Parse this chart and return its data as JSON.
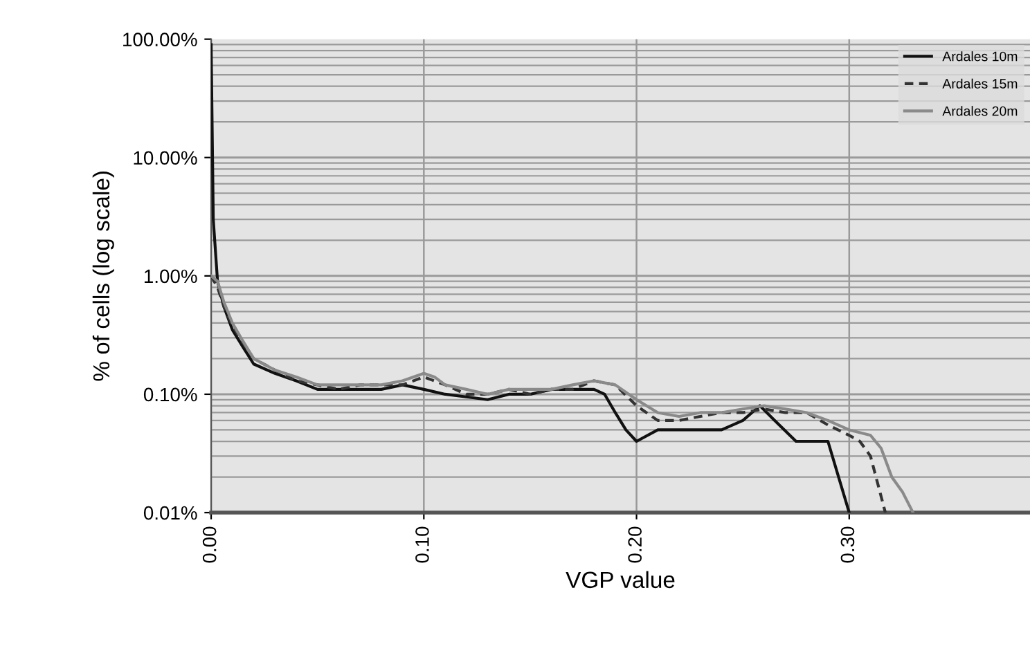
{
  "chart_data": {
    "type": "line",
    "xlabel": "VGP value",
    "ylabel": "% of cells (log scale)",
    "log": "y",
    "xlim": [
      0,
      0.385
    ],
    "xticks": [
      {
        "value": 0,
        "label": "0.00"
      },
      {
        "value": 0.1,
        "label": "0.10"
      },
      {
        "value": 0.2,
        "label": "0.20"
      },
      {
        "value": 0.3,
        "label": "0.30"
      }
    ],
    "ylim": [
      0.01,
      100
    ],
    "yticks": [
      {
        "value": 0.01,
        "label": "0.01%"
      },
      {
        "value": 0.1,
        "label": "0.10%"
      },
      {
        "value": 1,
        "label": "1.00%"
      },
      {
        "value": 10,
        "label": "10.00%"
      },
      {
        "value": 100,
        "label": "100.00%"
      }
    ],
    "grid": true,
    "legend": "top right",
    "series": [
      {
        "name": "Ardales 10m",
        "color": "#111111",
        "line_style": "solid",
        "x": [
          0,
          0.001,
          0.003,
          0.006,
          0.01,
          0.015,
          0.02,
          0.03,
          0.04,
          0.05,
          0.06,
          0.07,
          0.08,
          0.09,
          0.1,
          0.11,
          0.12,
          0.13,
          0.14,
          0.15,
          0.16,
          0.17,
          0.18,
          0.185,
          0.19,
          0.195,
          0.2,
          0.21,
          0.22,
          0.23,
          0.24,
          0.25,
          0.258,
          0.265,
          0.275,
          0.29,
          0.295,
          0.3
        ],
        "values": [
          90,
          3,
          0.9,
          0.55,
          0.35,
          0.25,
          0.18,
          0.15,
          0.13,
          0.11,
          0.11,
          0.11,
          0.11,
          0.12,
          0.11,
          0.1,
          0.095,
          0.09,
          0.1,
          0.1,
          0.11,
          0.11,
          0.11,
          0.1,
          0.07,
          0.05,
          0.04,
          0.05,
          0.05,
          0.05,
          0.05,
          0.06,
          0.08,
          0.06,
          0.04,
          0.04,
          0.02,
          0.01
        ]
      },
      {
        "name": "Ardales 15m",
        "color": "#333333",
        "line_style": "dashed",
        "x": [
          0,
          0.003,
          0.006,
          0.01,
          0.015,
          0.02,
          0.03,
          0.04,
          0.05,
          0.06,
          0.07,
          0.08,
          0.09,
          0.1,
          0.11,
          0.12,
          0.13,
          0.14,
          0.15,
          0.16,
          0.17,
          0.18,
          0.19,
          0.2,
          0.21,
          0.22,
          0.23,
          0.24,
          0.25,
          0.26,
          0.27,
          0.28,
          0.29,
          0.3,
          0.305,
          0.31,
          0.317
        ],
        "values": [
          1,
          0.8,
          0.55,
          0.38,
          0.27,
          0.2,
          0.16,
          0.13,
          0.12,
          0.11,
          0.12,
          0.12,
          0.12,
          0.14,
          0.12,
          0.1,
          0.1,
          0.11,
          0.1,
          0.11,
          0.11,
          0.13,
          0.12,
          0.08,
          0.06,
          0.06,
          0.065,
          0.07,
          0.07,
          0.075,
          0.07,
          0.07,
          0.055,
          0.045,
          0.04,
          0.03,
          0.01
        ]
      },
      {
        "name": "Ardales 20m",
        "color": "#8a8a8a",
        "line_style": "solid",
        "x": [
          0,
          0.003,
          0.006,
          0.01,
          0.015,
          0.02,
          0.03,
          0.04,
          0.05,
          0.06,
          0.07,
          0.08,
          0.09,
          0.1,
          0.105,
          0.11,
          0.12,
          0.13,
          0.14,
          0.15,
          0.16,
          0.17,
          0.18,
          0.19,
          0.2,
          0.21,
          0.22,
          0.23,
          0.24,
          0.25,
          0.26,
          0.27,
          0.28,
          0.29,
          0.3,
          0.31,
          0.315,
          0.32,
          0.325,
          0.33
        ],
        "values": [
          1,
          0.9,
          0.6,
          0.4,
          0.28,
          0.2,
          0.16,
          0.14,
          0.12,
          0.12,
          0.12,
          0.12,
          0.13,
          0.15,
          0.14,
          0.12,
          0.11,
          0.1,
          0.11,
          0.11,
          0.11,
          0.12,
          0.13,
          0.12,
          0.09,
          0.07,
          0.065,
          0.07,
          0.07,
          0.075,
          0.08,
          0.075,
          0.07,
          0.06,
          0.05,
          0.045,
          0.035,
          0.02,
          0.015,
          0.01
        ]
      }
    ]
  }
}
